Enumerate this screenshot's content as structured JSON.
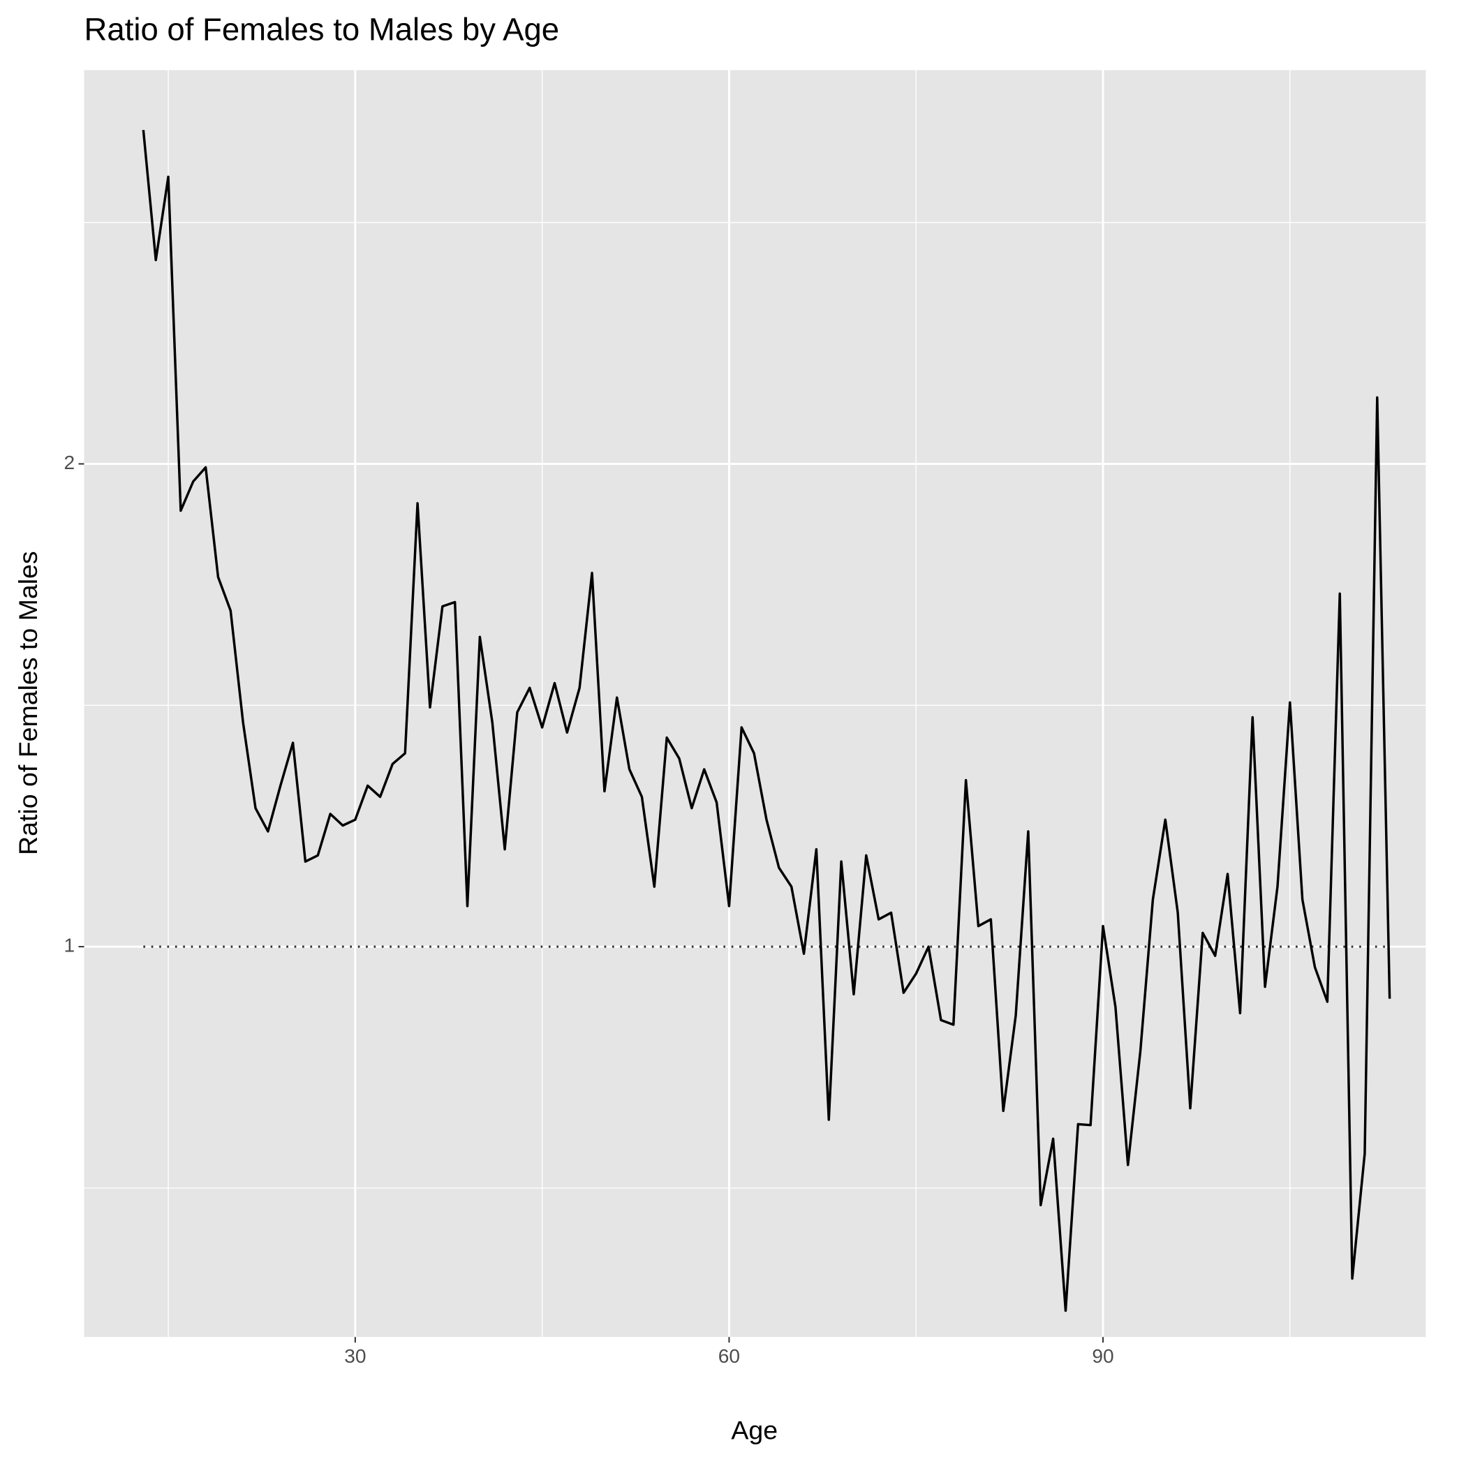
{
  "chart_data": {
    "type": "line",
    "title": "Ratio of Females to Males by Age",
    "x_label": "Age",
    "y_label": "Ratio of Females to Males",
    "x": [
      13,
      14,
      15,
      16,
      17,
      18,
      19,
      20,
      21,
      22,
      23,
      24,
      25,
      26,
      27,
      28,
      29,
      30,
      31,
      32,
      33,
      34,
      35,
      36,
      37,
      38,
      39,
      40,
      41,
      42,
      43,
      44,
      45,
      46,
      47,
      48,
      49,
      50,
      51,
      52,
      53,
      54,
      55,
      56,
      57,
      58,
      59,
      60,
      61,
      62,
      63,
      64,
      65,
      66,
      67,
      68,
      69,
      70,
      71,
      72,
      73,
      74,
      75,
      76,
      77,
      78,
      79,
      80,
      81,
      82,
      83,
      84,
      85,
      86,
      87,
      88,
      89,
      90,
      91,
      92,
      93,
      94,
      95,
      96,
      97,
      98,
      99,
      100,
      101,
      102,
      103,
      104,
      105,
      106,
      107,
      108,
      109,
      110,
      111,
      112,
      113
    ],
    "series": [
      {
        "name": "Ratio of Females to Males",
        "color": "#000000",
        "values": [
          3.23,
          2.68,
          3.02,
          1.87,
          1.95,
          1.99,
          1.7,
          1.62,
          1.38,
          1.22,
          1.18,
          1.26,
          1.34,
          1.13,
          1.14,
          1.21,
          1.19,
          1.2,
          1.26,
          1.24,
          1.3,
          1.32,
          1.89,
          1.41,
          1.63,
          1.64,
          1.06,
          1.56,
          1.38,
          1.15,
          1.4,
          1.45,
          1.37,
          1.46,
          1.36,
          1.45,
          1.71,
          1.25,
          1.43,
          1.29,
          1.24,
          1.09,
          1.35,
          1.31,
          1.22,
          1.29,
          1.23,
          1.06,
          1.37,
          1.32,
          1.2,
          1.12,
          1.09,
          0.99,
          1.15,
          0.78,
          1.13,
          0.934,
          1.14,
          1.04,
          1.05,
          0.936,
          0.962,
          1.0,
          0.9,
          0.894,
          1.27,
          1.03,
          1.04,
          0.79,
          0.906,
          1.18,
          0.69,
          0.759,
          0.593,
          0.775,
          0.774,
          1.03,
          0.917,
          0.731,
          0.861,
          1.07,
          1.2,
          1.05,
          0.793,
          1.02,
          0.987,
          1.11,
          0.909,
          1.39,
          0.944,
          1.09,
          1.42,
          1.07,
          0.971,
          0.924,
          1.66,
          0.621,
          0.743,
          2.2,
          0.928
        ]
      }
    ],
    "reference_line": 1,
    "xlim": [
      8.25,
      115.9
    ],
    "xticks": [
      30,
      60,
      90
    ],
    "ylim": [
      0.571,
      3.52
    ],
    "yticks": [
      1,
      2
    ],
    "yscale": "log",
    "grid": true
  }
}
